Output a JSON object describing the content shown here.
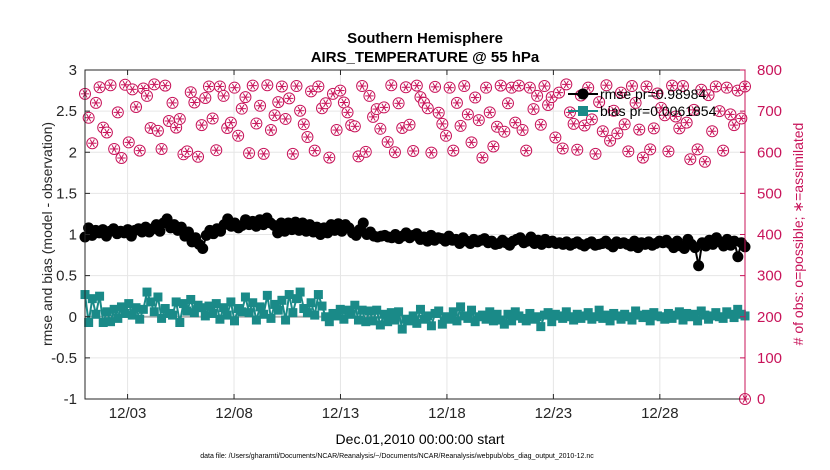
{
  "chart_data": {
    "type": "line",
    "title": [
      "Southern Hemisphere",
      "AIRS_TEMPERATURE @ 55 hPa"
    ],
    "xlabel": "Dec.01,2010 00:00:00 start",
    "ylabel_left": "rmse and bias (model - observation)",
    "ylabel_right": "# of obs: o=possible; ∗=assimilated",
    "footnote": "data file: /Users/gharamti/Documents/NCAR/Reanalysis/~/Documents/NCAR/Reanalysis/webpub/obs_diag_output_2010-12.nc",
    "x_tick_labels": [
      "12/03",
      "12/08",
      "12/13",
      "12/18",
      "12/23",
      "12/28"
    ],
    "x_tick_days": [
      3,
      8,
      13,
      18,
      23,
      28
    ],
    "xlim_days": [
      1,
      32
    ],
    "ylim_left": [
      -1,
      3
    ],
    "y_ticks_left": [
      "-1",
      "-0.5",
      "0",
      "0.5",
      "1",
      "1.5",
      "2",
      "2.5",
      "3"
    ],
    "ylim_right": [
      0,
      800
    ],
    "y_ticks_right": [
      "0",
      "100",
      "200",
      "300",
      "400",
      "500",
      "600",
      "700",
      "800"
    ],
    "grid": true,
    "legend_position": "top-right",
    "colors": {
      "rmse": "#000000",
      "bias": "#1a8a88",
      "obs": "#c8145a",
      "zero_line": "#b0b0b0",
      "grid": "#e6e6e6"
    },
    "series": [
      {
        "name": "rmse pr=0.98984",
        "axis": "left",
        "values": [
          0.97,
          1.08,
          0.99,
          1.05,
          1.02,
          1.06,
          0.98,
          1.04,
          1.07,
          1.01,
          1.04,
          1.02,
          1.06,
          0.98,
          1.05,
          1.07,
          1.03,
          1.09,
          1.03,
          1.07,
          1.12,
          1.04,
          1.14,
          1.19,
          1.08,
          1.12,
          1.05,
          1.09,
          0.98,
          1.03,
          0.91,
          0.96,
          0.88,
          0.83,
          0.99,
          1.05,
          1.01,
          1.07,
          1.04,
          1.12,
          1.19,
          1.1,
          1.14,
          1.08,
          1.11,
          1.18,
          1.12,
          1.16,
          1.1,
          1.18,
          1.12,
          1.2,
          1.14,
          1.11,
          1.02,
          1.14,
          1.04,
          1.14,
          1.06,
          1.15,
          1.05,
          1.14,
          1.04,
          1.12,
          1.03,
          1.09,
          1.0,
          1.08,
          1.02,
          1.12,
          1.05,
          1.13,
          1.04,
          1.12,
          1.08,
          1.02,
          0.99,
          1.06,
          1.14,
          1.0,
          1.03,
          0.98,
          0.97,
          0.98,
          0.99,
          0.97,
          0.96,
          1.0,
          0.95,
          0.98,
          1.02,
          0.96,
          0.99,
          1.01,
          0.94,
          0.97,
          0.92,
          0.99,
          0.93,
          0.96,
          0.95,
          0.92,
          0.98,
          0.93,
          0.94,
          0.89,
          0.96,
          0.92,
          0.89,
          0.94,
          0.91,
          0.93,
          0.95,
          0.9,
          0.92,
          0.88,
          0.89,
          0.93,
          0.9,
          0.87,
          0.92,
          0.94,
          0.96,
          0.9,
          0.92,
          0.97,
          0.89,
          0.93,
          0.88,
          0.94,
          0.9,
          0.92,
          0.89,
          0.9,
          0.88,
          0.91,
          0.87,
          0.89,
          0.91,
          0.88,
          0.86,
          0.89,
          0.91,
          0.87,
          0.88,
          0.89,
          0.92,
          0.88,
          0.85,
          0.91,
          0.89,
          0.9,
          0.88,
          0.86,
          0.92,
          0.84,
          0.9,
          0.88,
          0.91,
          0.87,
          0.89,
          0.92,
          0.9,
          0.93,
          0.89,
          0.84,
          0.92,
          0.86,
          0.83,
          0.94,
          0.88,
          0.84,
          0.62,
          0.9,
          0.86,
          0.93,
          0.88,
          0.96,
          0.91,
          0.86,
          0.94,
          0.87,
          0.92,
          0.73,
          0.9,
          0.85
        ]
      },
      {
        "name": "bias pr=0.0061854",
        "axis": "left",
        "values": [
          0.27,
          -0.07,
          0.22,
          0.03,
          0.25,
          -0.07,
          0.06,
          -0.06,
          0.09,
          -0.02,
          0.12,
          0.04,
          0.16,
          0.02,
          0.11,
          -0.03,
          0.09,
          0.3,
          0.18,
          0.06,
          0.24,
          -0.02,
          0.1,
          0.04,
          0.02,
          0.18,
          -0.07,
          0.16,
          0.07,
          0.21,
          0.05,
          0.14,
          0.11,
          0.01,
          0.13,
          0.04,
          0.16,
          -0.03,
          0.11,
          0.02,
          0.18,
          -0.05,
          0.1,
          0.06,
          0.24,
          0.05,
          0.17,
          -0.04,
          0.12,
          0.03,
          0.26,
          -0.02,
          0.15,
          0.08,
          0.2,
          -0.04,
          0.27,
          0.05,
          0.22,
          0.3,
          0.1,
          0.05,
          0.17,
          0.02,
          0.27,
          0.13,
          0.0,
          -0.06,
          0.04,
          0.01,
          0.09,
          -0.03,
          0.08,
          0.03,
          0.14,
          -0.04,
          0.08,
          -0.06,
          0.07,
          -0.05,
          0.08,
          -0.1,
          0.03,
          -0.06,
          0.05,
          -0.04,
          0.06,
          -0.15,
          -0.03,
          -0.05,
          0.01,
          -0.08,
          0.09,
          -0.03,
          0.01,
          -0.11,
          0.04,
          0.07,
          -0.09,
          0.0,
          -0.03,
          0.06,
          -0.05,
          0.12,
          0.01,
          -0.02,
          0.08,
          -0.06,
          0.0,
          0.02,
          -0.03,
          0.06,
          -0.05,
          0.03,
          -0.04,
          -0.09,
          0.03,
          -0.05,
          0.06,
          0.01,
          -0.02,
          -0.05,
          0.04,
          -0.03,
          0.0,
          -0.12,
          0.02,
          0.05,
          -0.06,
          0.03,
          0.01,
          -0.02,
          0.06,
          0.0,
          -0.04,
          0.03,
          -0.02,
          0.01,
          0.05,
          -0.03,
          0.0,
          0.08,
          -0.02,
          0.02,
          -0.05,
          0.04,
          0.01,
          -0.03,
          0.03,
          0.0,
          -0.04,
          0.07,
          0.02,
          -0.01,
          0.03,
          -0.05,
          0.05,
          0.01,
          0.0,
          -0.03,
          0.04,
          -0.02,
          0.02,
          0.06,
          -0.04,
          0.04,
          0.0,
          0.03,
          -0.05,
          0.07,
          0.02,
          -0.03,
          0.01,
          0.05,
          0.0,
          -0.02,
          0.06,
          0.03,
          -0.01,
          0.09,
          0.03,
          0.01
        ]
      },
      {
        "name": "# of obs possible / assimilated",
        "axis": "right",
        "values": [
          742,
          684,
          622,
          720,
          758,
          660,
          648,
          763,
          608,
          697,
          586,
          764,
          624,
          753,
          710,
          604,
          755,
          737,
          659,
          765,
          652,
          608,
          762,
          676,
          720,
          660,
          681,
          595,
          602,
          746,
          721,
          589,
          666,
          732,
          760,
          682,
          605,
          760,
          737,
          659,
          672,
          757,
          640,
          706,
          734,
          598,
          762,
          670,
          713,
          596,
          763,
          654,
          690,
          722,
          760,
          681,
          731,
          596,
          761,
          701,
          668,
          637,
          748,
          604,
          760,
          707,
          719,
          587,
          742,
          654,
          750,
          721,
          697,
          666,
          663,
          590,
          761,
          601,
          737,
          686,
          705,
          657,
          709,
          625,
          763,
          600,
          719,
          659,
          758,
          667,
          603,
          762,
          734,
          720,
          707,
          599,
          759,
          696,
          669,
          640,
          757,
          604,
          720,
          664,
          761,
          692,
          624,
          733,
          678,
          587,
          757,
          697,
          614,
          662,
          762,
          650,
          719,
          757,
          672,
          762,
          654,
          604,
          757,
          705,
          737,
          667,
          761,
          715,
          734,
          636,
          745,
          609,
          765,
          697,
          669,
          606,
          738,
          665,
          757,
          680,
          596,
          722,
          651,
          763,
          628,
          701,
          646,
          745,
          668,
          602,
          761,
          720,
          655,
          587,
          760,
          607,
          658,
          743,
          708,
          690,
          602,
          762,
          687,
          658,
          761,
          672,
          583,
          703,
          607,
          752,
          577,
          739,
          651,
          760,
          700,
          604,
          757,
          692,
          666,
          750,
          682,
          760
        ]
      }
    ]
  }
}
